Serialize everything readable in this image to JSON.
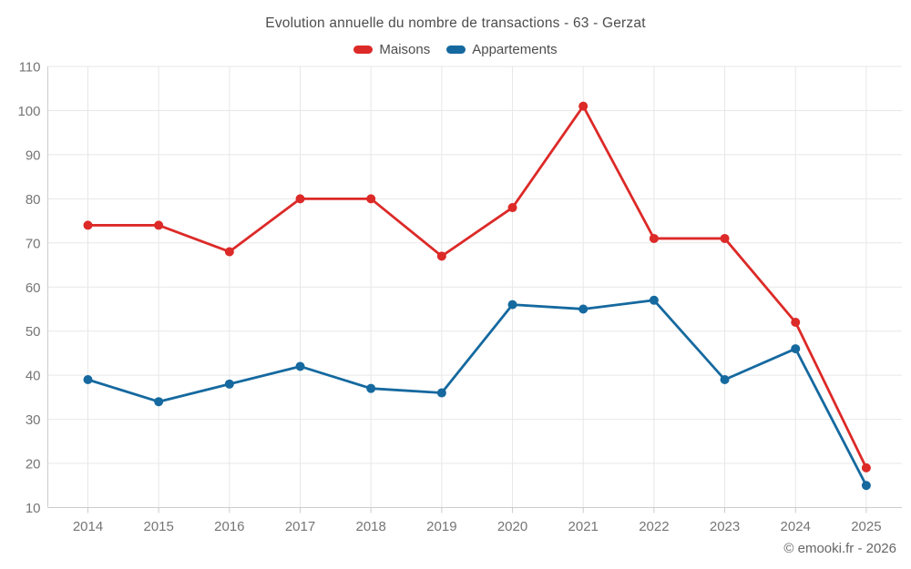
{
  "chart_data": {
    "type": "line",
    "title": "Evolution annuelle du nombre de transactions - 63 - Gerzat",
    "categories": [
      "2014",
      "2015",
      "2016",
      "2017",
      "2018",
      "2019",
      "2020",
      "2021",
      "2022",
      "2023",
      "2024",
      "2025"
    ],
    "series": [
      {
        "name": "Maisons",
        "color": "#dc2a28",
        "values": [
          74,
          74,
          68,
          80,
          80,
          67,
          78,
          101,
          71,
          71,
          52,
          19
        ]
      },
      {
        "name": "Appartements",
        "color": "#15699f",
        "values": [
          39,
          34,
          38,
          42,
          37,
          36,
          56,
          55,
          57,
          39,
          46,
          15
        ]
      }
    ],
    "ylim": [
      10,
      110
    ],
    "y_ticks": [
      10,
      20,
      30,
      40,
      50,
      60,
      70,
      80,
      90,
      100,
      110
    ],
    "xlabel": "",
    "ylabel": "",
    "grid": true,
    "legend_position": "top"
  },
  "footer": {
    "copyright": "© emooki.fr - 2026"
  },
  "colors": {
    "grid": "#e7e7e7",
    "axis": "#cccccc",
    "axis_text": "#757575",
    "title_text": "#4d4d4d",
    "background": "#ffffff"
  }
}
